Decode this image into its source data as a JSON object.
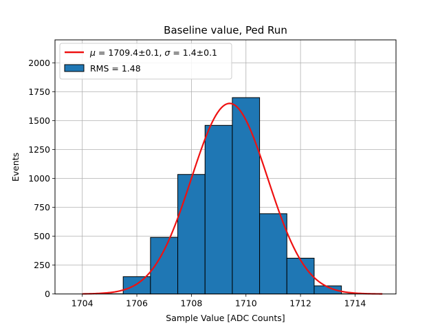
{
  "chart_data": {
    "type": "bar",
    "title": "Baseline value, Ped Run",
    "xlabel": "Sample Value [ADC Counts]",
    "ylabel": "Events",
    "xlim": [
      1703,
      1715.5
    ],
    "ylim": [
      0,
      2200
    ],
    "xticks": [
      1704,
      1706,
      1708,
      1710,
      1712,
      1714
    ],
    "yticks": [
      0,
      250,
      500,
      750,
      1000,
      1250,
      1500,
      1750,
      2000
    ],
    "grid": true,
    "legend_position": "upper-left",
    "histogram": {
      "name": "RMS = 1.48",
      "color": "#1f77b4",
      "edge_color": "#000000",
      "bins": [
        {
          "left": 1704.5,
          "right": 1705.5,
          "count": 2
        },
        {
          "left": 1705.5,
          "right": 1706.5,
          "count": 150
        },
        {
          "left": 1706.5,
          "right": 1707.5,
          "count": 490
        },
        {
          "left": 1707.5,
          "right": 1708.5,
          "count": 1035
        },
        {
          "left": 1708.5,
          "right": 1709.5,
          "count": 1460
        },
        {
          "left": 1709.5,
          "right": 1710.5,
          "count": 1700
        },
        {
          "left": 1710.5,
          "right": 1711.5,
          "count": 695
        },
        {
          "left": 1711.5,
          "right": 1712.5,
          "count": 310
        },
        {
          "left": 1712.5,
          "right": 1713.5,
          "count": 70
        },
        {
          "left": 1713.5,
          "right": 1714.5,
          "count": 2
        }
      ]
    },
    "fit": {
      "name_mu_symbol": "μ",
      "name_sigma_symbol": "σ",
      "name_mu_value": " = 1709.4±0.1, ",
      "name_sigma_value": " = 1.4±0.1",
      "color": "#ee1111",
      "mu": 1709.4,
      "sigma": 1.4,
      "amplitude": 1650,
      "x_range": [
        1704,
        1715
      ]
    }
  }
}
